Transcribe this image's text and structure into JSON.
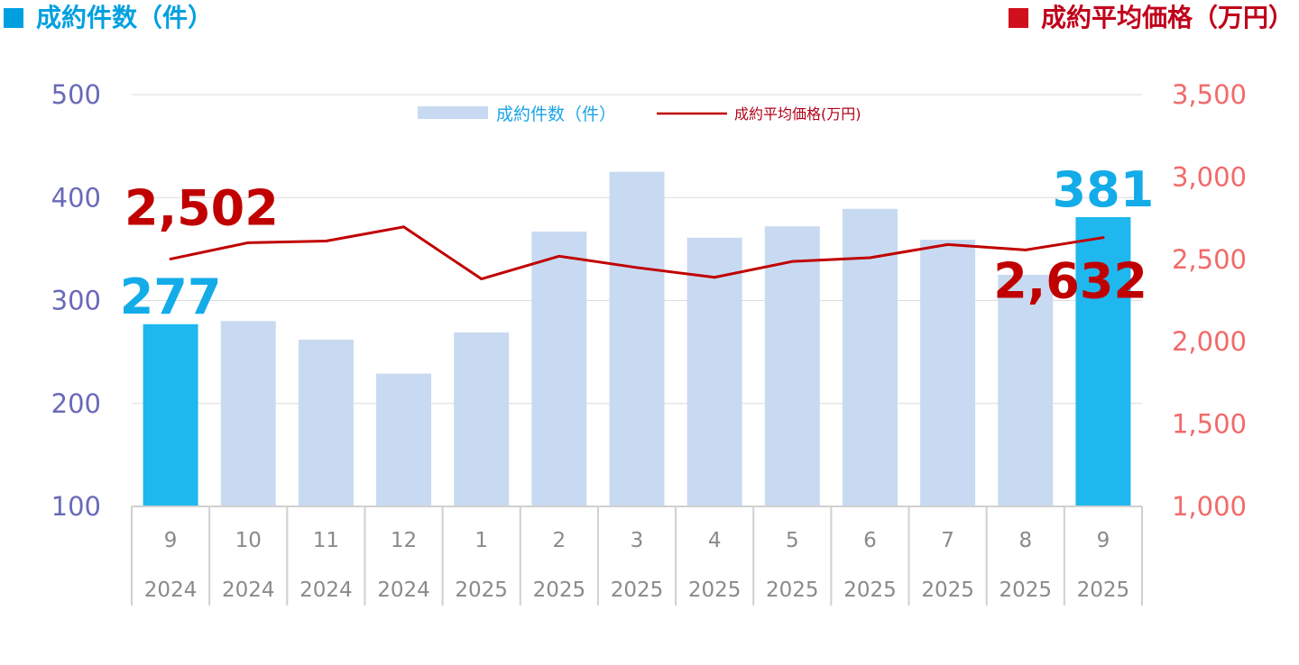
{
  "header": {
    "left_title": "成約件数（件）",
    "right_title": "成約平均価格（万円）"
  },
  "colors": {
    "bar": "#c8daf1",
    "bar_highlight": "#1fb8ee",
    "line": "#c00000",
    "left_axis": "#6a6ab8",
    "right_axis": "#f26a6a"
  },
  "chart_data": {
    "type": "bar",
    "categories": [
      "9",
      "10",
      "11",
      "12",
      "1",
      "2",
      "3",
      "4",
      "5",
      "6",
      "7",
      "8",
      "9"
    ],
    "years": [
      "2024",
      "2024",
      "2024",
      "2024",
      "2025",
      "2025",
      "2025",
      "2025",
      "2025",
      "2025",
      "2025",
      "2025",
      "2025"
    ],
    "series": [
      {
        "name": "成約件数（件）",
        "type": "bar",
        "axis": "left",
        "values": [
          277,
          280,
          262,
          229,
          269,
          367,
          425,
          361,
          372,
          389,
          359,
          325,
          381
        ],
        "highlight": [
          true,
          false,
          false,
          false,
          false,
          false,
          false,
          false,
          false,
          false,
          false,
          false,
          true
        ]
      },
      {
        "name": "成約平均価格(万円)",
        "type": "line",
        "axis": "right",
        "values": [
          2502,
          2601,
          2611,
          2697,
          2381,
          2519,
          2450,
          2391,
          2487,
          2510,
          2590,
          2557,
          2632
        ]
      }
    ],
    "y_left": {
      "min": 100,
      "max": 500,
      "ticks": [
        "500",
        "400",
        "300",
        "200",
        "100"
      ]
    },
    "y_right": {
      "min": 1000,
      "max": 3500,
      "ticks": [
        "3,500",
        "3,000",
        "2,500",
        "2,000",
        "1,500",
        "1,000"
      ]
    },
    "gridlines": true,
    "legend_position": "top-center",
    "data_labels": {
      "first_bar": "277",
      "last_bar": "381",
      "first_line": "2,502",
      "last_line": "2,632"
    }
  }
}
